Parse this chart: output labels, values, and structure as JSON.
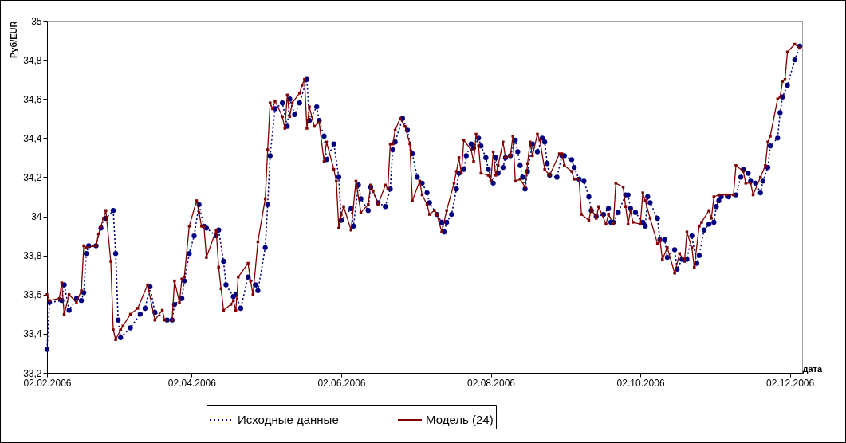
{
  "chart_data": {
    "type": "line",
    "xlabel": "дата",
    "ylabel": "Руб/EUR",
    "xlim": [
      "2006-02-02",
      "2006-12-07"
    ],
    "xticks": [
      {
        "value": "2006-02-02",
        "label": "02.02.2006"
      },
      {
        "value": "2006-04-02",
        "label": "02.04.2006"
      },
      {
        "value": "2006-06-02",
        "label": "02.06.2006"
      },
      {
        "value": "2006-08-02",
        "label": "02.08.2006"
      },
      {
        "value": "2006-10-02",
        "label": "02.10.2006"
      },
      {
        "value": "2006-12-02",
        "label": "02.12.2006"
      }
    ],
    "ylim": [
      33.2,
      35
    ],
    "yticks": [
      {
        "value": 33.2,
        "label": "33,2"
      },
      {
        "value": 33.4,
        "label": "33,4"
      },
      {
        "value": 33.6,
        "label": "33,6"
      },
      {
        "value": 33.8,
        "label": "33,8"
      },
      {
        "value": 34,
        "label": "34"
      },
      {
        "value": 34.2,
        "label": "34,2"
      },
      {
        "value": 34.4,
        "label": "34,4"
      },
      {
        "value": 34.6,
        "label": "34,6"
      },
      {
        "value": 34.8,
        "label": "34,8"
      },
      {
        "value": 35,
        "label": "35"
      }
    ],
    "grid": false,
    "legend": "bottom",
    "series": [
      {
        "name": "Исходные данные",
        "color": "#000080",
        "line_style": "dotted",
        "marker": "circle",
        "x": [
          "2006-02-02",
          "2006-02-03",
          "2006-02-08",
          "2006-02-09",
          "2006-02-11",
          "2006-02-14",
          "2006-02-16",
          "2006-02-17",
          "2006-02-18",
          "2006-02-19",
          "2006-02-22",
          "2006-02-24",
          "2006-02-26",
          "2006-03-01",
          "2006-03-02",
          "2006-03-03",
          "2006-03-04",
          "2006-03-08",
          "2006-03-12",
          "2006-03-14",
          "2006-03-16",
          "2006-03-18",
          "2006-03-23",
          "2006-03-25",
          "2006-03-26",
          "2006-03-29",
          "2006-03-30",
          "2006-04-01",
          "2006-04-03",
          "2006-04-05",
          "2006-04-07",
          "2006-04-08",
          "2006-04-12",
          "2006-04-13",
          "2006-04-15",
          "2006-04-16",
          "2006-04-19",
          "2006-04-20",
          "2006-04-22",
          "2006-04-25",
          "2006-04-28",
          "2006-04-29",
          "2006-05-02",
          "2006-05-03",
          "2006-05-04",
          "2006-05-06",
          "2006-05-09",
          "2006-05-11",
          "2006-05-12",
          "2006-05-14",
          "2006-05-16",
          "2006-05-19",
          "2006-05-20",
          "2006-05-23",
          "2006-05-24",
          "2006-05-26",
          "2006-05-27",
          "2006-05-30",
          "2006-06-01",
          "2006-06-02",
          "2006-06-06",
          "2006-06-07",
          "2006-06-09",
          "2006-06-10",
          "2006-06-13",
          "2006-06-14",
          "2006-06-17",
          "2006-06-20",
          "2006-06-22",
          "2006-06-23",
          "2006-06-24",
          "2006-06-27",
          "2006-06-29",
          "2006-07-01",
          "2006-07-03",
          "2006-07-05",
          "2006-07-07",
          "2006-07-08",
          "2006-07-11",
          "2006-07-13",
          "2006-07-14",
          "2006-07-15",
          "2006-07-17",
          "2006-07-19",
          "2006-07-20",
          "2006-07-22",
          "2006-07-23",
          "2006-07-25",
          "2006-07-26",
          "2006-07-28",
          "2006-07-29",
          "2006-07-31",
          "2006-08-01",
          "2006-08-03",
          "2006-08-04",
          "2006-08-05",
          "2006-08-07",
          "2006-08-08",
          "2006-08-10",
          "2006-08-12",
          "2006-08-13",
          "2006-08-14",
          "2006-08-15",
          "2006-08-16",
          "2006-08-17",
          "2006-08-19",
          "2006-08-21",
          "2006-08-23",
          "2006-08-24",
          "2006-08-25",
          "2006-08-26",
          "2006-08-29",
          "2006-08-31",
          "2006-09-01",
          "2006-09-04",
          "2006-09-05",
          "2006-09-07",
          "2006-09-09",
          "2006-09-11",
          "2006-09-12",
          "2006-09-14",
          "2006-09-17",
          "2006-09-19",
          "2006-09-20",
          "2006-09-21",
          "2006-09-23",
          "2006-09-26",
          "2006-09-27",
          "2006-09-28",
          "2006-09-30",
          "2006-10-03",
          "2006-10-04",
          "2006-10-05",
          "2006-10-06",
          "2006-10-09",
          "2006-10-10",
          "2006-10-12",
          "2006-10-13",
          "2006-10-16",
          "2006-10-17",
          "2006-10-19",
          "2006-10-21",
          "2006-10-23",
          "2006-10-25",
          "2006-10-26",
          "2006-10-28",
          "2006-10-30",
          "2006-11-01",
          "2006-11-02",
          "2006-11-03",
          "2006-11-04",
          "2006-11-07",
          "2006-11-10",
          "2006-11-12",
          "2006-11-13",
          "2006-11-15",
          "2006-11-16",
          "2006-11-18",
          "2006-11-20",
          "2006-11-21",
          "2006-11-23",
          "2006-11-24",
          "2006-11-27",
          "2006-11-28",
          "2006-11-29",
          "2006-12-01",
          "2006-12-04",
          "2006-12-06"
        ],
        "values": [
          33.32,
          33.56,
          33.57,
          33.65,
          33.52,
          33.58,
          33.57,
          33.61,
          33.81,
          33.85,
          33.85,
          33.94,
          33.99,
          34.03,
          33.81,
          33.47,
          33.38,
          33.43,
          33.5,
          33.53,
          33.64,
          33.51,
          33.47,
          33.47,
          33.55,
          33.58,
          33.67,
          33.81,
          33.9,
          34.06,
          33.95,
          33.94,
          33.9,
          33.93,
          33.77,
          33.65,
          33.59,
          33.6,
          33.53,
          33.69,
          33.65,
          33.62,
          33.84,
          34.06,
          34.31,
          34.55,
          34.58,
          34.46,
          34.6,
          34.52,
          34.58,
          34.7,
          34.49,
          34.56,
          34.49,
          34.41,
          34.29,
          34.37,
          34.2,
          33.98,
          34.04,
          33.95,
          34.16,
          34.09,
          34.03,
          34.15,
          34.07,
          34.05,
          34.14,
          34.34,
          34.38,
          34.5,
          34.44,
          34.32,
          34.2,
          34.17,
          34.12,
          34.07,
          34.01,
          33.97,
          33.92,
          33.97,
          34.01,
          34.14,
          34.22,
          34.24,
          34.31,
          34.37,
          34.35,
          34.4,
          34.36,
          34.3,
          34.24,
          34.17,
          34.3,
          34.22,
          34.25,
          34.3,
          34.31,
          34.39,
          34.33,
          34.26,
          34.2,
          34.14,
          34.23,
          34.37,
          34.33,
          34.4,
          34.38,
          34.27,
          34.21,
          34.2,
          34.31,
          34.31,
          34.29,
          34.25,
          34.19,
          34.18,
          34.1,
          34.03,
          34.0,
          34.01,
          34.04,
          33.97,
          33.97,
          34.02,
          34.11,
          34.11,
          34.04,
          34.02,
          33.97,
          33.95,
          34.1,
          34.07,
          33.99,
          33.88,
          33.88,
          33.79,
          33.83,
          33.73,
          33.78,
          33.78,
          33.9,
          33.76,
          33.8,
          33.93,
          33.96,
          33.97,
          34.05,
          34.08,
          34.1,
          34.1,
          34.11,
          34.2,
          34.24,
          34.22,
          34.18,
          34.17,
          34.12,
          34.18,
          34.25,
          34.36,
          34.4,
          34.53,
          34.61,
          34.67,
          34.8,
          34.87
        ]
      },
      {
        "name": "Модель (24)",
        "color": "#800000",
        "line_style": "solid",
        "marker": "square",
        "x": [
          "2006-02-02",
          "2006-02-03",
          "2006-02-07",
          "2006-02-08",
          "2006-02-09",
          "2006-02-11",
          "2006-02-14",
          "2006-02-16",
          "2006-02-17",
          "2006-02-18",
          "2006-02-22",
          "2006-02-23",
          "2006-02-24",
          "2006-02-25",
          "2006-02-26",
          "2006-02-28",
          "2006-03-01",
          "2006-03-02",
          "2006-03-04",
          "2006-03-05",
          "2006-03-08",
          "2006-03-11",
          "2006-03-15",
          "2006-03-18",
          "2006-03-21",
          "2006-03-22",
          "2006-03-25",
          "2006-03-26",
          "2006-03-28",
          "2006-03-29",
          "2006-03-30",
          "2006-04-01",
          "2006-04-04",
          "2006-04-05",
          "2006-04-06",
          "2006-04-07",
          "2006-04-08",
          "2006-04-12",
          "2006-04-13",
          "2006-04-14",
          "2006-04-15",
          "2006-04-18",
          "2006-04-19",
          "2006-04-20",
          "2006-04-21",
          "2006-04-25",
          "2006-04-26",
          "2006-04-27",
          "2006-04-29",
          "2006-05-02",
          "2006-05-03",
          "2006-05-04",
          "2006-05-05",
          "2006-05-06",
          "2006-05-09",
          "2006-05-10",
          "2006-05-11",
          "2006-05-12",
          "2006-05-13",
          "2006-05-16",
          "2006-05-17",
          "2006-05-18",
          "2006-05-19",
          "2006-05-20",
          "2006-05-22",
          "2006-05-24",
          "2006-05-26",
          "2006-05-27",
          "2006-05-30",
          "2006-05-31",
          "2006-06-01",
          "2006-06-02",
          "2006-06-03",
          "2006-06-06",
          "2006-06-08",
          "2006-06-10",
          "2006-06-13",
          "2006-06-14",
          "2006-06-15",
          "2006-06-17",
          "2006-06-20",
          "2006-06-21",
          "2006-06-22",
          "2006-06-23",
          "2006-06-24",
          "2006-06-26",
          "2006-06-28",
          "2006-06-30",
          "2006-07-01",
          "2006-07-04",
          "2006-07-05",
          "2006-07-07",
          "2006-07-08",
          "2006-07-10",
          "2006-07-11",
          "2006-07-13",
          "2006-07-15",
          "2006-07-18",
          "2006-07-19",
          "2006-07-20",
          "2006-07-21",
          "2006-07-22",
          "2006-07-25",
          "2006-07-26",
          "2006-07-27",
          "2006-07-28",
          "2006-07-29",
          "2006-08-01",
          "2006-08-02",
          "2006-08-03",
          "2006-08-04",
          "2006-08-05",
          "2006-08-07",
          "2006-08-08",
          "2006-08-10",
          "2006-08-11",
          "2006-08-12",
          "2006-08-14",
          "2006-08-16",
          "2006-08-17",
          "2006-08-18",
          "2006-08-19",
          "2006-08-21",
          "2006-08-22",
          "2006-08-24",
          "2006-08-26",
          "2006-08-30",
          "2006-08-31",
          "2006-09-01",
          "2006-09-04",
          "2006-09-05",
          "2006-09-07",
          "2006-09-08",
          "2006-09-11",
          "2006-09-12",
          "2006-09-14",
          "2006-09-15",
          "2006-09-18",
          "2006-09-19",
          "2006-09-21",
          "2006-09-22",
          "2006-09-25",
          "2006-09-26",
          "2006-09-27",
          "2006-09-28",
          "2006-09-29",
          "2006-10-02",
          "2006-10-03",
          "2006-10-04",
          "2006-10-06",
          "2006-10-09",
          "2006-10-10",
          "2006-10-11",
          "2006-10-13",
          "2006-10-16",
          "2006-10-18",
          "2006-10-20",
          "2006-10-21",
          "2006-10-23",
          "2006-10-24",
          "2006-10-26",
          "2006-10-27",
          "2006-10-30",
          "2006-10-31",
          "2006-11-01",
          "2006-11-03",
          "2006-11-06",
          "2006-11-09",
          "2006-11-10",
          "2006-11-13",
          "2006-11-14",
          "2006-11-16",
          "2006-11-17",
          "2006-11-20",
          "2006-11-22",
          "2006-11-23",
          "2006-11-24",
          "2006-11-27",
          "2006-11-28",
          "2006-11-29",
          "2006-11-30",
          "2006-12-01",
          "2006-12-04",
          "2006-12-06"
        ],
        "values": [
          33.6,
          33.57,
          33.58,
          33.66,
          33.5,
          33.6,
          33.56,
          33.62,
          33.85,
          33.84,
          33.85,
          33.91,
          33.95,
          33.99,
          34.03,
          33.77,
          33.42,
          33.37,
          33.42,
          33.44,
          33.5,
          33.53,
          33.65,
          33.47,
          33.52,
          33.47,
          33.47,
          33.67,
          33.56,
          33.68,
          33.69,
          33.95,
          34.08,
          34.02,
          33.95,
          33.95,
          33.79,
          33.93,
          33.74,
          33.63,
          33.52,
          33.55,
          33.57,
          33.52,
          33.69,
          33.76,
          33.67,
          33.6,
          33.87,
          34.09,
          34.34,
          34.58,
          34.55,
          34.59,
          34.51,
          34.45,
          34.62,
          34.51,
          34.58,
          34.63,
          34.67,
          34.7,
          34.45,
          34.56,
          34.46,
          34.48,
          34.28,
          34.38,
          34.24,
          34.18,
          33.94,
          34.01,
          34.05,
          33.93,
          34.18,
          34.02,
          34.06,
          34.16,
          34.13,
          34.06,
          34.16,
          34.14,
          34.37,
          34.37,
          34.44,
          34.5,
          34.46,
          34.37,
          34.08,
          34.18,
          34.11,
          34.06,
          34.01,
          34.03,
          34.01,
          33.92,
          34.03,
          34.17,
          34.23,
          34.3,
          34.22,
          34.39,
          34.34,
          34.28,
          34.42,
          34.36,
          34.22,
          34.21,
          34.18,
          34.33,
          34.21,
          34.26,
          34.38,
          34.3,
          34.31,
          34.41,
          34.18,
          34.19,
          34.15,
          34.27,
          34.38,
          34.31,
          34.42,
          34.39,
          34.24,
          34.21,
          34.32,
          34.32,
          34.26,
          34.23,
          34.19,
          34.19,
          34.01,
          33.98,
          34.04,
          33.99,
          34.05,
          33.96,
          34.01,
          33.96,
          34.17,
          34.15,
          34.05,
          33.96,
          34.03,
          33.97,
          33.96,
          34.12,
          34.08,
          33.99,
          33.86,
          33.88,
          33.78,
          33.84,
          33.71,
          33.81,
          33.77,
          33.92,
          33.84,
          33.74,
          33.95,
          33.97,
          34.03,
          33.99,
          34.1,
          34.11,
          34.11,
          34.11,
          34.26,
          34.23,
          34.17,
          34.17,
          34.11,
          34.2,
          34.26,
          34.38,
          34.41,
          34.6,
          34.61,
          34.69,
          34.7,
          34.84,
          34.88,
          34.86
        ]
      }
    ]
  }
}
